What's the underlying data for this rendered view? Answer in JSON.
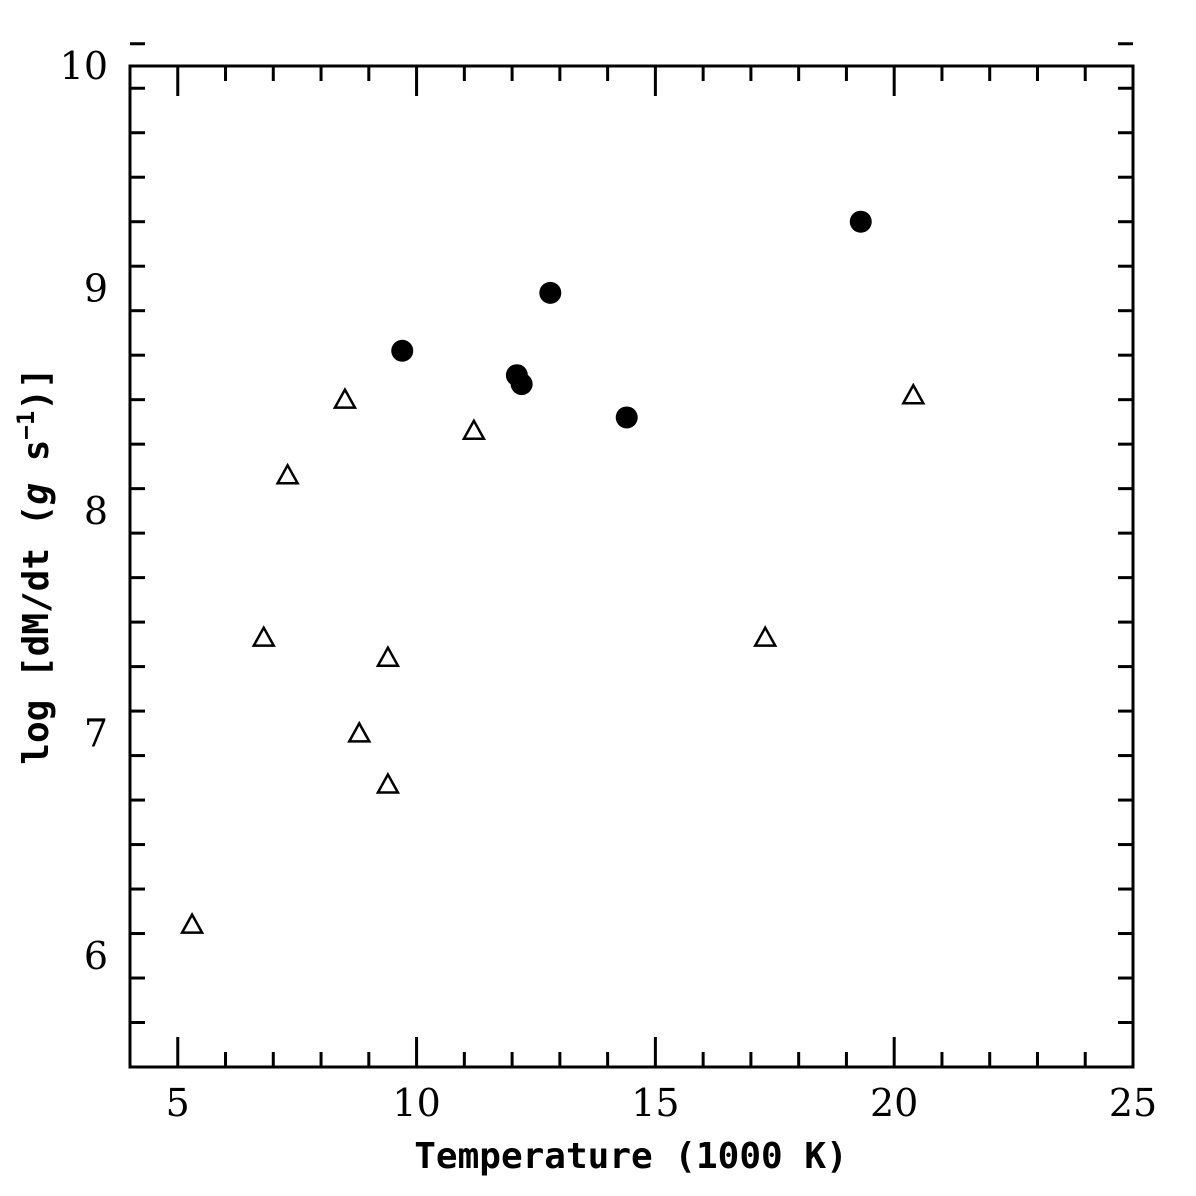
{
  "chart_data": {
    "type": "scatter",
    "xlabel": "Temperature (1000 K)",
    "ylabel": {
      "text_pre": "log [dM/dt (",
      "g_italic": "g",
      "text_mid": " s",
      "superscript": "−1",
      "text_post": ")]"
    },
    "xlim": [
      4,
      25
    ],
    "ylim": [
      5.5,
      10
    ],
    "x_major_ticks": [
      5,
      10,
      15,
      20,
      25
    ],
    "x_minor_step": 1,
    "y_major_ticks": [
      6,
      7,
      8,
      9,
      10
    ],
    "y_minor_step": 0.2,
    "grid": false,
    "series": [
      {
        "marker": "filled-circle",
        "color": "#000000",
        "points": [
          {
            "x": 9.7,
            "y": 8.72
          },
          {
            "x": 12.1,
            "y": 8.61
          },
          {
            "x": 12.2,
            "y": 8.57
          },
          {
            "x": 12.8,
            "y": 8.98
          },
          {
            "x": 14.4,
            "y": 8.42
          },
          {
            "x": 19.3,
            "y": 9.3
          }
        ]
      },
      {
        "marker": "open-triangle",
        "color": "#000000",
        "points": [
          {
            "x": 5.3,
            "y": 6.14
          },
          {
            "x": 6.8,
            "y": 7.43
          },
          {
            "x": 7.3,
            "y": 8.16
          },
          {
            "x": 8.5,
            "y": 8.5
          },
          {
            "x": 8.8,
            "y": 7.0
          },
          {
            "x": 9.4,
            "y": 7.34
          },
          {
            "x": 9.4,
            "y": 6.77
          },
          {
            "x": 11.2,
            "y": 8.36
          },
          {
            "x": 17.3,
            "y": 7.43
          },
          {
            "x": 20.4,
            "y": 8.52
          }
        ]
      }
    ]
  }
}
